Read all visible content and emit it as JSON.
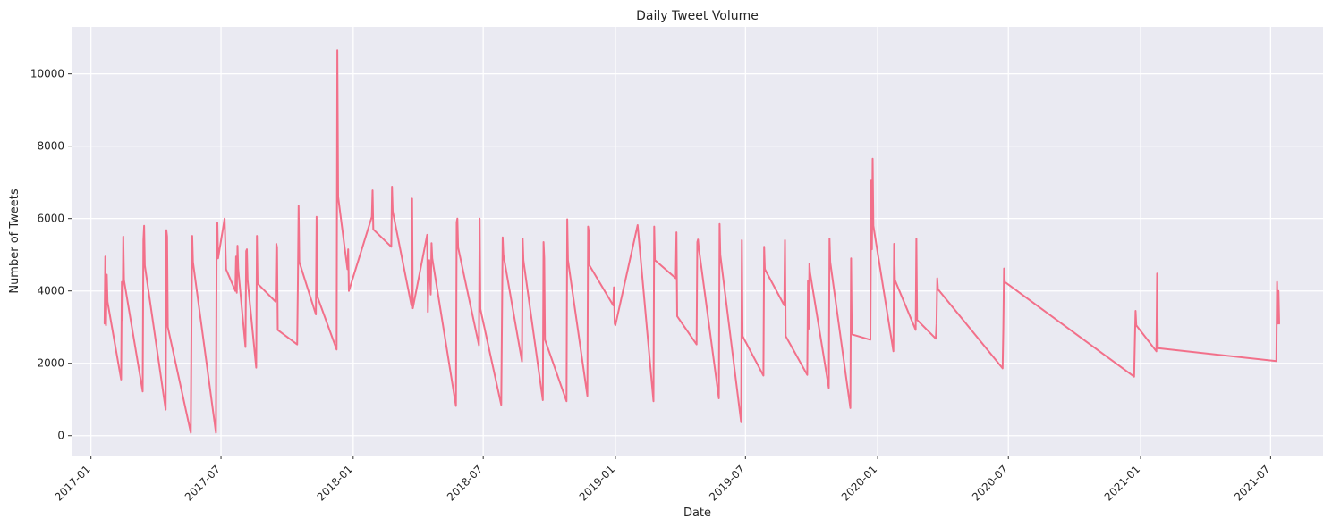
{
  "chart_data": {
    "type": "line",
    "title": "Daily Tweet Volume",
    "xlabel": "Date",
    "ylabel": "Number of Tweets",
    "xlim": [
      "2016-12-05",
      "2021-09-12"
    ],
    "ylim": [
      -550,
      11300
    ],
    "grid": true,
    "legend": "none",
    "colors": {
      "series": "#f2708a",
      "background": "#eaeaf2",
      "grid": "#ffffff"
    },
    "x_ticks": [
      {
        "value": "2017-01-01",
        "label": "2017-01"
      },
      {
        "value": "2017-07-01",
        "label": "2017-07"
      },
      {
        "value": "2018-01-01",
        "label": "2018-01"
      },
      {
        "value": "2018-07-01",
        "label": "2018-07"
      },
      {
        "value": "2019-01-01",
        "label": "2019-01"
      },
      {
        "value": "2019-07-01",
        "label": "2019-07"
      },
      {
        "value": "2020-01-01",
        "label": "2020-01"
      },
      {
        "value": "2020-07-01",
        "label": "2020-07"
      },
      {
        "value": "2021-01-01",
        "label": "2021-01"
      },
      {
        "value": "2021-07-01",
        "label": "2021-07"
      }
    ],
    "y_ticks": [
      {
        "value": 0,
        "label": "0"
      },
      {
        "value": 2000,
        "label": "2000"
      },
      {
        "value": 4000,
        "label": "4000"
      },
      {
        "value": 6000,
        "label": "6000"
      },
      {
        "value": 8000,
        "label": "8000"
      },
      {
        "value": 10000,
        "label": "10000"
      }
    ],
    "series": [
      {
        "points": [
          [
            "2017-01-20",
            3100
          ],
          [
            "2017-01-21",
            4950
          ],
          [
            "2017-01-22",
            3050
          ],
          [
            "2017-01-23",
            4450
          ],
          [
            "2017-01-24",
            3700
          ],
          [
            "2017-02-12",
            1550
          ],
          [
            "2017-02-13",
            4250
          ],
          [
            "2017-02-14",
            3200
          ],
          [
            "2017-02-15",
            5500
          ],
          [
            "2017-02-16",
            4300
          ],
          [
            "2017-03-14",
            1220
          ],
          [
            "2017-03-15",
            5400
          ],
          [
            "2017-03-16",
            5800
          ],
          [
            "2017-03-17",
            4700
          ],
          [
            "2017-04-15",
            720
          ],
          [
            "2017-04-16",
            5680
          ],
          [
            "2017-04-17",
            5500
          ],
          [
            "2017-04-18",
            3000
          ],
          [
            "2017-05-20",
            80
          ],
          [
            "2017-05-21",
            3300
          ],
          [
            "2017-05-22",
            5520
          ],
          [
            "2017-05-23",
            4800
          ],
          [
            "2017-06-24",
            80
          ],
          [
            "2017-06-25",
            5650
          ],
          [
            "2017-06-26",
            5880
          ],
          [
            "2017-06-27",
            4900
          ],
          [
            "2017-07-06",
            6000
          ],
          [
            "2017-07-08",
            4600
          ],
          [
            "2017-07-21",
            4000
          ],
          [
            "2017-07-22",
            4950
          ],
          [
            "2017-07-23",
            3950
          ],
          [
            "2017-07-24",
            5250
          ],
          [
            "2017-07-25",
            4600
          ],
          [
            "2017-08-04",
            2450
          ],
          [
            "2017-08-05",
            5100
          ],
          [
            "2017-08-06",
            5150
          ],
          [
            "2017-08-07",
            4300
          ],
          [
            "2017-08-19",
            1880
          ],
          [
            "2017-08-20",
            5520
          ],
          [
            "2017-08-21",
            4200
          ],
          [
            "2017-09-15",
            3700
          ],
          [
            "2017-09-16",
            5300
          ],
          [
            "2017-09-17",
            5200
          ],
          [
            "2017-09-18",
            2920
          ],
          [
            "2017-10-15",
            2520
          ],
          [
            "2017-10-16",
            4200
          ],
          [
            "2017-10-17",
            6350
          ],
          [
            "2017-10-18",
            4800
          ],
          [
            "2017-11-10",
            3350
          ],
          [
            "2017-11-11",
            6050
          ],
          [
            "2017-11-12",
            3850
          ],
          [
            "2017-12-09",
            2380
          ],
          [
            "2017-12-10",
            10650
          ],
          [
            "2017-12-11",
            6600
          ],
          [
            "2017-12-24",
            4600
          ],
          [
            "2017-12-25",
            5150
          ],
          [
            "2017-12-26",
            4000
          ],
          [
            "2018-01-27",
            6050
          ],
          [
            "2018-01-28",
            6780
          ],
          [
            "2018-01-29",
            5700
          ],
          [
            "2018-02-23",
            5220
          ],
          [
            "2018-02-24",
            6880
          ],
          [
            "2018-02-25",
            6200
          ],
          [
            "2018-03-23",
            3600
          ],
          [
            "2018-03-24",
            6550
          ],
          [
            "2018-03-25",
            3520
          ],
          [
            "2018-04-14",
            5550
          ],
          [
            "2018-04-15",
            3420
          ],
          [
            "2018-04-16",
            4600
          ],
          [
            "2018-04-17",
            4850
          ],
          [
            "2018-04-19",
            3900
          ],
          [
            "2018-04-20",
            5320
          ],
          [
            "2018-04-21",
            4900
          ],
          [
            "2018-05-24",
            820
          ],
          [
            "2018-05-25",
            5900
          ],
          [
            "2018-05-26",
            6000
          ],
          [
            "2018-05-27",
            5200
          ],
          [
            "2018-06-25",
            2500
          ],
          [
            "2018-06-26",
            6000
          ],
          [
            "2018-06-27",
            3500
          ],
          [
            "2018-07-26",
            850
          ],
          [
            "2018-07-27",
            3100
          ],
          [
            "2018-07-28",
            5480
          ],
          [
            "2018-07-29",
            5000
          ],
          [
            "2018-08-24",
            2050
          ],
          [
            "2018-08-25",
            5450
          ],
          [
            "2018-08-26",
            4850
          ],
          [
            "2018-09-22",
            980
          ],
          [
            "2018-09-23",
            5350
          ],
          [
            "2018-09-24",
            4900
          ],
          [
            "2018-09-25",
            2650
          ],
          [
            "2018-10-25",
            950
          ],
          [
            "2018-10-26",
            5980
          ],
          [
            "2018-10-27",
            4850
          ],
          [
            "2018-11-23",
            1100
          ],
          [
            "2018-11-24",
            5780
          ],
          [
            "2018-11-25",
            5650
          ],
          [
            "2018-11-26",
            4700
          ],
          [
            "2018-12-29",
            3600
          ],
          [
            "2018-12-30",
            4100
          ],
          [
            "2018-12-31",
            3100
          ],
          [
            "2019-01-01",
            3050
          ],
          [
            "2019-02-01",
            5820
          ],
          [
            "2019-02-23",
            950
          ],
          [
            "2019-02-24",
            5780
          ],
          [
            "2019-02-25",
            4850
          ],
          [
            "2019-03-26",
            4350
          ],
          [
            "2019-03-27",
            5620
          ],
          [
            "2019-03-28",
            3300
          ],
          [
            "2019-04-24",
            2520
          ],
          [
            "2019-04-25",
            5350
          ],
          [
            "2019-04-26",
            5420
          ],
          [
            "2019-04-27",
            5200
          ],
          [
            "2019-05-25",
            1030
          ],
          [
            "2019-05-26",
            5850
          ],
          [
            "2019-05-27",
            5000
          ],
          [
            "2019-06-25",
            370
          ],
          [
            "2019-06-26",
            5400
          ],
          [
            "2019-06-27",
            2750
          ],
          [
            "2019-07-26",
            1660
          ],
          [
            "2019-07-27",
            5220
          ],
          [
            "2019-07-28",
            4600
          ],
          [
            "2019-08-24",
            3600
          ],
          [
            "2019-08-25",
            5400
          ],
          [
            "2019-08-26",
            2750
          ],
          [
            "2019-09-25",
            1680
          ],
          [
            "2019-09-26",
            4280
          ],
          [
            "2019-09-27",
            2950
          ],
          [
            "2019-09-28",
            4750
          ],
          [
            "2019-09-29",
            4500
          ],
          [
            "2019-10-25",
            1320
          ],
          [
            "2019-10-26",
            5450
          ],
          [
            "2019-10-27",
            4800
          ],
          [
            "2019-11-24",
            760
          ],
          [
            "2019-11-25",
            4900
          ],
          [
            "2019-11-26",
            2800
          ],
          [
            "2019-12-22",
            2650
          ],
          [
            "2019-12-23",
            7070
          ],
          [
            "2019-12-24",
            5150
          ],
          [
            "2019-12-25",
            7650
          ],
          [
            "2019-12-26",
            5800
          ],
          [
            "2020-01-23",
            2330
          ],
          [
            "2020-01-24",
            5300
          ],
          [
            "2020-01-25",
            4300
          ],
          [
            "2020-02-23",
            2920
          ],
          [
            "2020-02-24",
            5450
          ],
          [
            "2020-02-25",
            3200
          ],
          [
            "2020-03-22",
            2680
          ],
          [
            "2020-03-23",
            3100
          ],
          [
            "2020-03-24",
            4350
          ],
          [
            "2020-03-25",
            4050
          ],
          [
            "2020-06-23",
            1860
          ],
          [
            "2020-06-24",
            3000
          ],
          [
            "2020-06-25",
            4620
          ],
          [
            "2020-06-26",
            4250
          ],
          [
            "2020-12-23",
            1630
          ],
          [
            "2020-12-24",
            2600
          ],
          [
            "2020-12-25",
            3450
          ],
          [
            "2020-12-26",
            3050
          ],
          [
            "2021-01-23",
            2330
          ],
          [
            "2021-01-24",
            4480
          ],
          [
            "2021-01-25",
            2420
          ],
          [
            "2021-07-09",
            2060
          ],
          [
            "2021-07-10",
            4250
          ],
          [
            "2021-07-11",
            3100
          ],
          [
            "2021-07-12",
            4000
          ],
          [
            "2021-07-13",
            3100
          ]
        ]
      }
    ]
  }
}
